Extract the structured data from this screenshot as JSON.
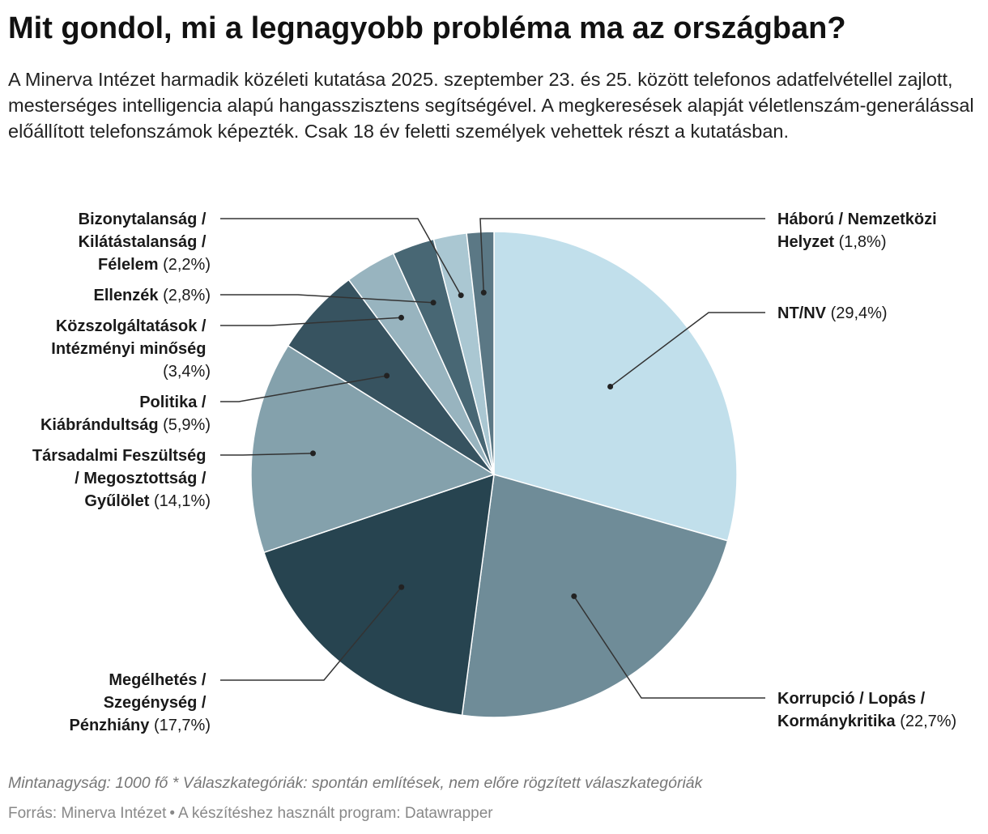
{
  "chart_data": {
    "type": "pie",
    "title": "Mit gondol, mi a legnagyobb probléma ma az országban?",
    "subtitle": "A Minerva Intézet harmadik közéleti kutatása 2025. szeptember 23. és 25. között telefonos adatfelvétellel zajlott, mesterséges intelligencia alapú hangasszisztens segítségével. A megkeresések alapját véletlenszám-generálással előállított telefonszámok képezték. Csak 18 év feletti személyek vehettek részt a kutatásban.",
    "unit": "%",
    "slices": [
      {
        "label": "NT/NV",
        "value": 29.4,
        "value_text": "(29,4%)",
        "color": "#c1dfeb"
      },
      {
        "label": "Korrupció / Lopás / Kormánykritika",
        "value": 22.7,
        "value_text": "(22,7%)",
        "color": "#6f8c98"
      },
      {
        "label": "Megélhetés / Szegénység / Pénzhiány",
        "value": 17.7,
        "value_text": "(17,7%)",
        "color": "#274450"
      },
      {
        "label": "Társadalmi Feszültség / Megosztottság / Gyűlölet",
        "value": 14.1,
        "value_text": "(14,1%)",
        "color": "#84a1ac"
      },
      {
        "label": "Politika / Kiábrándultság",
        "value": 5.9,
        "value_text": "(5,9%)",
        "color": "#375360"
      },
      {
        "label": "Közszolgáltatások / Intézményi minőség",
        "value": 3.4,
        "value_text": "(3,4%)",
        "color": "#98b4bf"
      },
      {
        "label": "Ellenzék",
        "value": 2.8,
        "value_text": "(2,8%)",
        "color": "#486774"
      },
      {
        "label": "Bizonytalanság / Kilátástalanság / Félelem",
        "value": 2.2,
        "value_text": "(2,2%)",
        "color": "#aac7d2"
      },
      {
        "label": "Háború / Nemzetközi Helyzet",
        "value": 1.8,
        "value_text": "(1,8%)",
        "color": "#5b7885"
      }
    ]
  },
  "labels": {
    "nt": {
      "line1": "NT/NV",
      "value": "(29,4%)"
    },
    "korr": {
      "line1": "Korrupció / Lopás /",
      "line2": "Kormánykritika",
      "value": "(22,7%)"
    },
    "meg": {
      "line1": "Megélhetés /",
      "line2": "Szegénység /",
      "line3": "Pénzhiány",
      "value": "(17,7%)"
    },
    "tars": {
      "line1": "Társadalmi Feszültség",
      "line2": "/ Megosztottság /",
      "line3": "Gyűlölet",
      "value": "(14,1%)"
    },
    "pol": {
      "line1": "Politika /",
      "line2": "Kiábrándultság",
      "value": "(5,9%)"
    },
    "kozsz": {
      "line1": "Közszolgáltatások /",
      "line2": "Intézményi minőség",
      "value": "(3,4%)"
    },
    "ell": {
      "line1": "Ellenzék",
      "value": "(2,8%)"
    },
    "biz": {
      "line1": "Bizonytalanság /",
      "line2": "Kilátástalanság /",
      "line3": "Félelem",
      "value": "(2,2%)"
    },
    "hab": {
      "line1": "Háború / Nemzetközi",
      "line2": "Helyzet",
      "value": "(1,8%)"
    }
  },
  "footer": {
    "note": "Mintanagyság: 1000 fő * Válaszkategóriák: spontán említések, nem előre rögzített válaszkategóriák",
    "source_label": "Forrás: Minerva Intézet",
    "separator": "•",
    "tool_label": "A készítéshez használt program: Datawrapper"
  }
}
